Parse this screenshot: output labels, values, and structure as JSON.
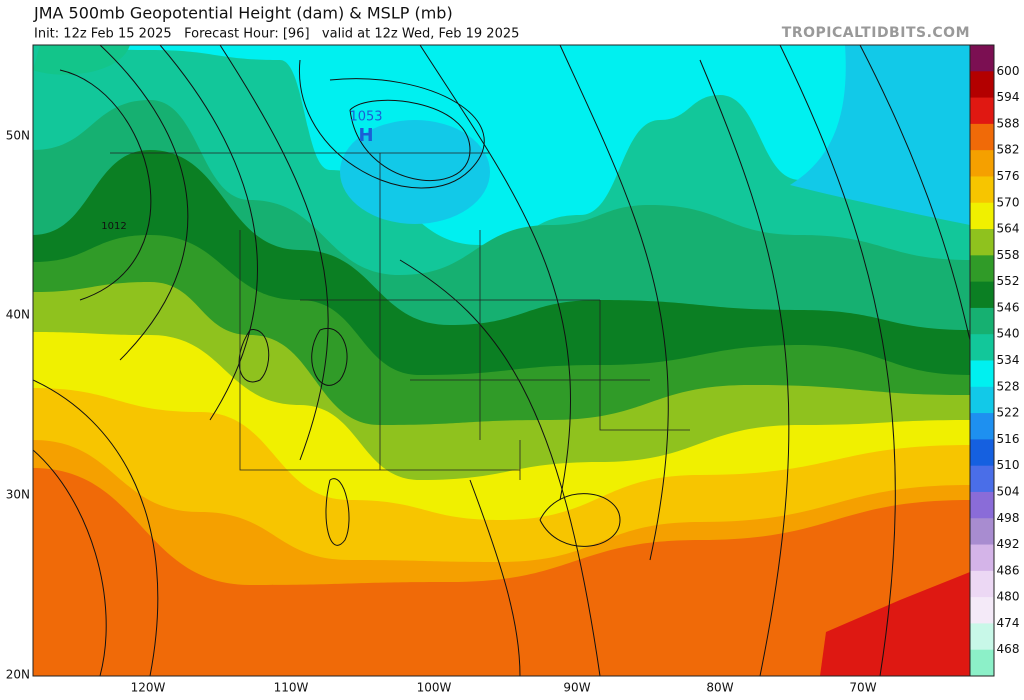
{
  "header": {
    "title": "JMA 500mb Geopotential Height (dam) & MSLP (mb)",
    "subtitle": "Init: 12z Feb 15 2025   Forecast Hour: [96]   valid at 12z Wed, Feb 19 2025",
    "site": "TROPICALTIDBITS.COM"
  },
  "map": {
    "lat_labels": [
      "50N",
      "40N",
      "30N",
      "20N"
    ],
    "lon_labels": [
      "120W",
      "110W",
      "100W",
      "90W",
      "80W",
      "70W"
    ],
    "annotations": [
      "1053",
      "H",
      "1012"
    ]
  },
  "colorbar": {
    "labels": [
      "600",
      "594",
      "588",
      "582",
      "576",
      "570",
      "564",
      "558",
      "552",
      "546",
      "540",
      "534",
      "528",
      "522",
      "516",
      "510",
      "504",
      "498",
      "492",
      "486",
      "480",
      "474",
      "468"
    ]
  }
}
